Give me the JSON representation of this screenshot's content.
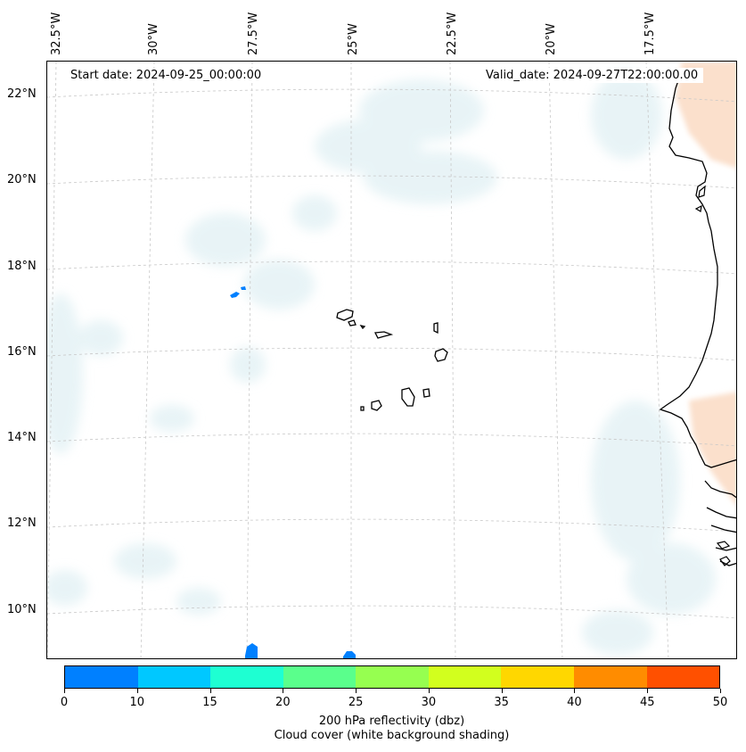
{
  "map": {
    "longitude_labels": [
      "32.5°W",
      "30°W",
      "27.5°W",
      "25°W",
      "22.5°W",
      "20°W",
      "17.5°W"
    ],
    "latitude_labels": [
      "22°N",
      "20°N",
      "18°N",
      "16°N",
      "14°N",
      "12°N",
      "10°N"
    ],
    "start_date": "Start date: 2024-09-25_00:00:00",
    "valid_date": "Valid_date: 2024-09-27T22:00:00.00"
  },
  "colorbar": {
    "tick_labels": [
      "0",
      "10",
      "15",
      "20",
      "25",
      "30",
      "35",
      "40",
      "45",
      "50"
    ],
    "colors": [
      "#0080ff",
      "#00c8ff",
      "#1effd2",
      "#5aff8c",
      "#96ff50",
      "#d2ff1e",
      "#ffd700",
      "#ff8c00",
      "#ff5000"
    ],
    "title_line1": "200 hPa reflectivity (dbz)",
    "title_line2": "Cloud cover (white background shading)"
  },
  "colors": {
    "cloud": "#d6ebf0",
    "warm_shading": "#fbe0cc",
    "coastline": "#000000",
    "gridline": "#c8c8c8"
  }
}
